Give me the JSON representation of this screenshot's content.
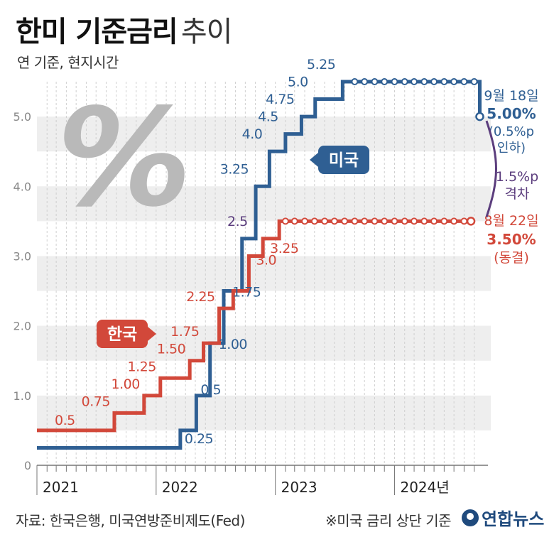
{
  "header": {
    "title_bold": "한미 기준금리",
    "title_light": "추이",
    "subtitle": "연 기준, 현지시간"
  },
  "footer": {
    "source": "자료: 한국은행, 미국연방준비제도(Fed)",
    "note": "※미국 금리 상단 기준",
    "logo": "연합뉴스"
  },
  "colors": {
    "us": "#2f5f93",
    "korea": "#d2483a",
    "gap": "#5b3d7d",
    "band": "#eeeeee",
    "axis": "#777777"
  },
  "chart_data": {
    "type": "line",
    "step": true,
    "ylim": [
      0,
      5.5
    ],
    "yticks": [
      "0",
      "1.0",
      "2.0",
      "3.0",
      "4.0",
      "5.0"
    ],
    "x_range": [
      "2021-01-01",
      "2024-09-30"
    ],
    "xticks": [
      "2021",
      "2022",
      "2023",
      "2024년"
    ],
    "series": [
      {
        "name": "미국",
        "color": "#2f5f93",
        "dates": [
          "2021-01-01",
          "2022-03-16",
          "2022-05-04",
          "2022-06-15",
          "2022-07-27",
          "2022-09-21",
          "2022-11-02",
          "2022-12-14",
          "2023-02-01",
          "2023-03-22",
          "2023-05-03",
          "2023-07-26",
          "2024-09-18"
        ],
        "values": [
          0.25,
          0.5,
          1.0,
          1.75,
          2.5,
          3.25,
          4.0,
          4.5,
          4.75,
          5.0,
          5.25,
          5.5,
          5.0
        ],
        "end": "2024-09-18",
        "labels": [
          {
            "date": "2022-03-16",
            "text": "0.25"
          },
          {
            "date": "2022-05-04",
            "text": "0.5"
          },
          {
            "date": "2022-06-15",
            "text": "1.00"
          },
          {
            "date": "2022-07-27",
            "text": "1.75"
          },
          {
            "date": "2022-09-21",
            "text": "2.5"
          },
          {
            "date": "2022-11-02",
            "text": "3.25"
          },
          {
            "date": "2022-12-14",
            "text": "4.0"
          },
          {
            "date": "2023-02-01",
            "text": "4.5"
          },
          {
            "date": "2023-03-22",
            "text": "4.75"
          },
          {
            "date": "2023-05-03",
            "text": "5.0"
          },
          {
            "date": "2023-07-26",
            "text": "5.25"
          }
        ],
        "tag": "미국"
      },
      {
        "name": "한국",
        "color": "#d2483a",
        "dates": [
          "2021-01-01",
          "2021-08-26",
          "2021-11-25",
          "2022-01-14",
          "2022-04-14",
          "2022-05-26",
          "2022-07-13",
          "2022-08-25",
          "2022-10-12",
          "2022-11-24",
          "2023-01-13"
        ],
        "values": [
          0.5,
          0.75,
          1.0,
          1.25,
          1.5,
          1.75,
          2.25,
          2.5,
          3.0,
          3.25,
          3.5
        ],
        "end": "2024-08-22",
        "labels": [
          {
            "date": "2021-01-01",
            "text": "0.5"
          },
          {
            "date": "2021-08-26",
            "text": "0.75"
          },
          {
            "date": "2021-11-25",
            "text": "1.00"
          },
          {
            "date": "2022-01-14",
            "text": "1.25"
          },
          {
            "date": "2022-04-14",
            "text": "1.50"
          },
          {
            "date": "2022-05-26",
            "text": "1.75"
          },
          {
            "date": "2022-07-13",
            "text": "2.25"
          },
          {
            "date": "2022-10-12",
            "text": "3.0"
          },
          {
            "date": "2022-11-24",
            "text": "3.25"
          }
        ],
        "tag": "한국"
      }
    ],
    "annotations": {
      "us_end": {
        "date": "9월 18일",
        "value": "5.00%",
        "note": "(0.5%p",
        "note2": "인하)"
      },
      "korea_end": {
        "date": "8월 22일",
        "value": "3.50%",
        "note": "(동결)"
      },
      "gap": {
        "line1": "1.5%p",
        "line2": "격차"
      },
      "decoration": "%"
    }
  }
}
